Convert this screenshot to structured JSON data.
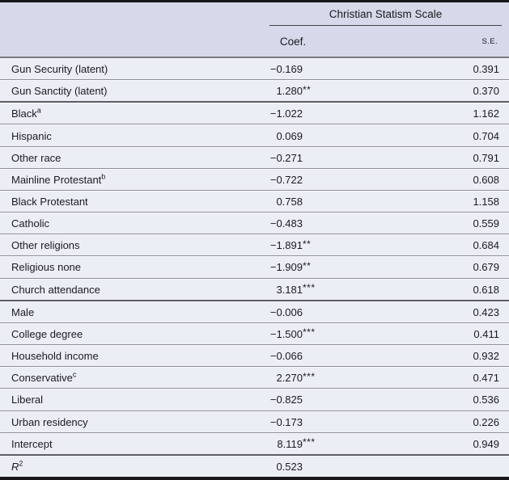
{
  "colors": {
    "header_background": "#d5d9e9",
    "row_background": "#eceef6",
    "row_separator": "#8f9096",
    "section_separator": "#5c5d63",
    "frame_bar": "#17171a",
    "text": "#1b1b1e"
  },
  "table": {
    "spanner_title": "Christian Statism Scale",
    "column_headers": {
      "coef": "Coef.",
      "se": "S.E."
    },
    "rows": [
      {
        "label": "Gun Security (latent)",
        "sup": "",
        "italic": false,
        "coef": "−0.169",
        "stars": "",
        "se": "0.391",
        "section_end": false
      },
      {
        "label": "Gun Sanctity (latent)",
        "sup": "",
        "italic": false,
        "coef": "1.280",
        "stars": "**",
        "se": "0.370",
        "section_end": true
      },
      {
        "label": "Black",
        "sup": "a",
        "italic": false,
        "coef": "−1.022",
        "stars": "",
        "se": "1.162",
        "section_end": false
      },
      {
        "label": "Hispanic",
        "sup": "",
        "italic": false,
        "coef": "0.069",
        "stars": "",
        "se": "0.704",
        "section_end": false
      },
      {
        "label": "Other race",
        "sup": "",
        "italic": false,
        "coef": "−0.271",
        "stars": "",
        "se": "0.791",
        "section_end": false
      },
      {
        "label": "Mainline Protestant",
        "sup": "b",
        "italic": false,
        "coef": "−0.722",
        "stars": "",
        "se": "0.608",
        "section_end": false
      },
      {
        "label": "Black Protestant",
        "sup": "",
        "italic": false,
        "coef": "0.758",
        "stars": "",
        "se": "1.158",
        "section_end": false
      },
      {
        "label": "Catholic",
        "sup": "",
        "italic": false,
        "coef": "−0.483",
        "stars": "",
        "se": "0.559",
        "section_end": false
      },
      {
        "label": "Other religions",
        "sup": "",
        "italic": false,
        "coef": "−1.891",
        "stars": "**",
        "se": "0.684",
        "section_end": false
      },
      {
        "label": "Religious none",
        "sup": "",
        "italic": false,
        "coef": "−1.909",
        "stars": "**",
        "se": "0.679",
        "section_end": false
      },
      {
        "label": "Church attendance",
        "sup": "",
        "italic": false,
        "coef": "3.181",
        "stars": "***",
        "se": "0.618",
        "section_end": true
      },
      {
        "label": "Male",
        "sup": "",
        "italic": false,
        "coef": "−0.006",
        "stars": "",
        "se": "0.423",
        "section_end": false
      },
      {
        "label": "College degree",
        "sup": "",
        "italic": false,
        "coef": "−1.500",
        "stars": "***",
        "se": "0.411",
        "section_end": false
      },
      {
        "label": "Household income",
        "sup": "",
        "italic": false,
        "coef": "−0.066",
        "stars": "",
        "se": "0.932",
        "section_end": false
      },
      {
        "label": "Conservative",
        "sup": "c",
        "italic": false,
        "coef": "2.270",
        "stars": "***",
        "se": "0.471",
        "section_end": false
      },
      {
        "label": "Liberal",
        "sup": "",
        "italic": false,
        "coef": "−0.825",
        "stars": "",
        "se": "0.536",
        "section_end": false
      },
      {
        "label": "Urban residency",
        "sup": "",
        "italic": false,
        "coef": "−0.173",
        "stars": "",
        "se": "0.226",
        "section_end": false
      },
      {
        "label": "Intercept",
        "sup": "",
        "italic": false,
        "coef": "8.119",
        "stars": "***",
        "se": "0.949",
        "section_end": true
      },
      {
        "label": "R",
        "sup": "2",
        "italic": true,
        "coef": "0.523",
        "stars": "",
        "se": "",
        "section_end": false
      }
    ]
  }
}
